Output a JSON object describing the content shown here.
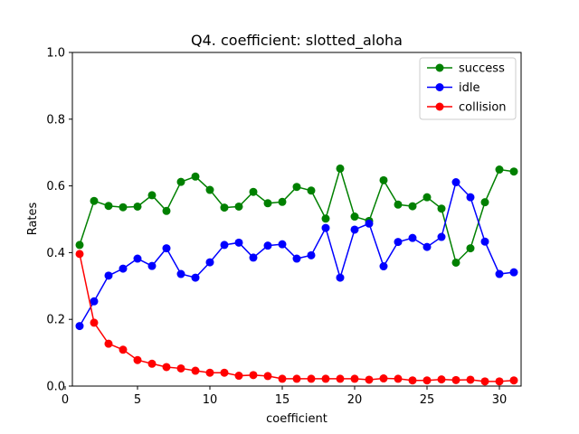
{
  "chart_data": {
    "type": "line",
    "title": "Q4. coefficient: slotted_aloha",
    "xlabel": "coefficient",
    "ylabel": "Rates",
    "xlim": [
      0.5,
      31.5
    ],
    "ylim": [
      0.0,
      1.0
    ],
    "xticks": [
      0,
      5,
      10,
      15,
      20,
      25,
      30
    ],
    "yticks": [
      0.0,
      0.2,
      0.4,
      0.6,
      0.8,
      1.0
    ],
    "xtick_labels": [
      "0",
      "5",
      "10",
      "15",
      "20",
      "25",
      "30"
    ],
    "ytick_labels": [
      "0.0",
      "0.2",
      "0.4",
      "0.6",
      "0.8",
      "1.0"
    ],
    "grid": false,
    "legend_position": "top-right",
    "x": [
      1,
      2,
      3,
      4,
      5,
      6,
      7,
      8,
      9,
      10,
      11,
      12,
      13,
      14,
      15,
      16,
      17,
      18,
      19,
      20,
      21,
      22,
      23,
      24,
      25,
      26,
      27,
      28,
      29,
      30,
      31
    ],
    "series": [
      {
        "name": "success",
        "color": "#008000",
        "values": [
          0.423,
          0.555,
          0.54,
          0.536,
          0.538,
          0.572,
          0.525,
          0.612,
          0.628,
          0.588,
          0.535,
          0.538,
          0.582,
          0.548,
          0.552,
          0.597,
          0.586,
          0.502,
          0.652,
          0.508,
          0.495,
          0.617,
          0.544,
          0.539,
          0.566,
          0.532,
          0.37,
          0.413,
          0.551,
          0.649,
          0.643
        ]
      },
      {
        "name": "idle",
        "color": "#0000ff",
        "values": [
          0.18,
          0.254,
          0.331,
          0.352,
          0.382,
          0.36,
          0.413,
          0.336,
          0.325,
          0.371,
          0.423,
          0.43,
          0.385,
          0.421,
          0.425,
          0.382,
          0.392,
          0.474,
          0.325,
          0.469,
          0.487,
          0.359,
          0.432,
          0.444,
          0.417,
          0.447,
          0.611,
          0.566,
          0.433,
          0.336,
          0.341
        ]
      },
      {
        "name": "collision",
        "color": "#ff0000",
        "values": [
          0.396,
          0.19,
          0.127,
          0.109,
          0.078,
          0.067,
          0.057,
          0.053,
          0.046,
          0.04,
          0.04,
          0.031,
          0.033,
          0.03,
          0.022,
          0.022,
          0.022,
          0.022,
          0.022,
          0.022,
          0.019,
          0.023,
          0.022,
          0.017,
          0.017,
          0.02,
          0.018,
          0.019,
          0.014,
          0.014,
          0.017
        ]
      }
    ]
  }
}
